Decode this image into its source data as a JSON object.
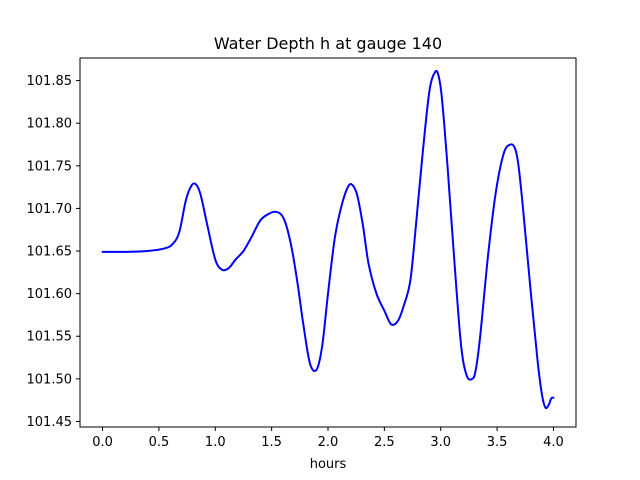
{
  "chart_data": {
    "type": "line",
    "title": "Water Depth h at gauge 140",
    "xlabel": "hours",
    "ylabel": "",
    "xlim": [
      -0.2,
      4.2
    ],
    "ylim": [
      101.4435,
      101.8765
    ],
    "xticks": [
      0.0,
      0.5,
      1.0,
      1.5,
      2.0,
      2.5,
      3.0,
      3.5,
      4.0
    ],
    "xtick_labels": [
      "0.0",
      "0.5",
      "1.0",
      "1.5",
      "2.0",
      "2.5",
      "3.0",
      "3.5",
      "4.0"
    ],
    "yticks": [
      101.45,
      101.5,
      101.55,
      101.6,
      101.65,
      101.7,
      101.75,
      101.8,
      101.85
    ],
    "ytick_labels": [
      "101.45",
      "101.50",
      "101.55",
      "101.60",
      "101.65",
      "101.70",
      "101.75",
      "101.80",
      "101.85"
    ],
    "grid": false,
    "series": [
      {
        "color": "#0000ff",
        "x": [
          0.0,
          0.2,
          0.4,
          0.55,
          0.62,
          0.68,
          0.74,
          0.79,
          0.83,
          0.87,
          0.93,
          1.0,
          1.06,
          1.12,
          1.18,
          1.25,
          1.32,
          1.4,
          1.48,
          1.54,
          1.59,
          1.63,
          1.68,
          1.73,
          1.78,
          1.84,
          1.9,
          1.95,
          2.0,
          2.06,
          2.12,
          2.18,
          2.22,
          2.26,
          2.31,
          2.36,
          2.43,
          2.5,
          2.56,
          2.62,
          2.67,
          2.73,
          2.78,
          2.84,
          2.9,
          2.95,
          2.98,
          3.01,
          3.06,
          3.12,
          3.18,
          3.23,
          3.28,
          3.31,
          3.35,
          3.42,
          3.49,
          3.56,
          3.62,
          3.66,
          3.69,
          3.73,
          3.8,
          3.86,
          3.9,
          3.93,
          3.96,
          3.98,
          4.0
        ],
        "y": [
          101.649,
          101.649,
          101.65,
          101.653,
          101.658,
          101.672,
          101.71,
          101.727,
          101.728,
          101.716,
          101.68,
          101.64,
          101.628,
          101.63,
          101.64,
          101.65,
          101.666,
          101.686,
          101.694,
          101.696,
          101.692,
          101.68,
          101.652,
          101.612,
          101.565,
          101.518,
          101.511,
          101.54,
          101.6,
          101.665,
          101.703,
          101.726,
          101.727,
          101.715,
          101.68,
          101.635,
          101.6,
          101.58,
          101.564,
          101.568,
          101.585,
          101.615,
          101.68,
          101.765,
          101.838,
          101.86,
          101.856,
          101.83,
          101.75,
          101.64,
          101.54,
          101.504,
          101.5,
          101.51,
          101.55,
          101.645,
          101.72,
          101.765,
          101.775,
          101.77,
          101.75,
          101.7,
          101.6,
          101.52,
          101.48,
          101.466,
          101.47,
          101.477,
          101.478
        ]
      }
    ]
  }
}
